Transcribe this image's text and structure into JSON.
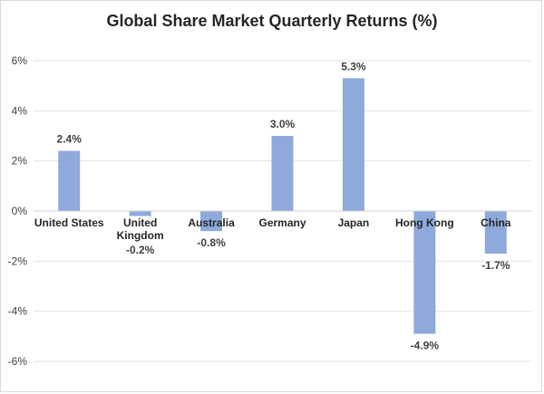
{
  "chart_data": {
    "type": "bar",
    "title": "Global Share Market Quarterly Returns (%)",
    "categories": [
      "United States",
      "United Kingdom",
      "Australia",
      "Germany",
      "Japan",
      "Hong Kong",
      "China"
    ],
    "category_lines": [
      [
        "United States"
      ],
      [
        "United",
        "Kingdom"
      ],
      [
        "Australia"
      ],
      [
        "Germany"
      ],
      [
        "Japan"
      ],
      [
        "Hong Kong"
      ],
      [
        "China"
      ]
    ],
    "values": [
      2.4,
      -0.2,
      -0.8,
      3.0,
      5.3,
      -4.9,
      -1.7
    ],
    "data_labels": [
      "2.4%",
      "-0.2%",
      "-0.8%",
      "3.0%",
      "5.3%",
      "-4.9%",
      "-1.7%"
    ],
    "y_ticks": [
      6,
      4,
      2,
      0,
      -2,
      -4,
      -6
    ],
    "y_tick_labels": [
      "6%",
      "4%",
      "2%",
      "0%",
      "-2%",
      "-4%",
      "-6%"
    ],
    "ylim": [
      -6,
      6
    ],
    "xlabel": "",
    "ylabel": "",
    "grid": true,
    "legend": "none",
    "bar_color": "#8eaadb"
  }
}
